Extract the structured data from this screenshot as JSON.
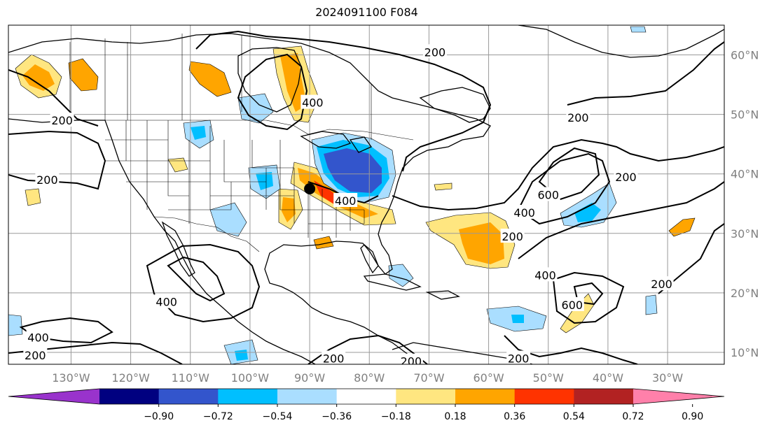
{
  "title": "2024091100 F084",
  "lon_labels": [
    "130°W",
    "120°W",
    "110°W",
    "100°W",
    "90°W",
    "80°W",
    "70°W",
    "60°W",
    "50°W",
    "40°W",
    "30°W"
  ],
  "lat_labels": [
    "60°N",
    "50°N",
    "40°N",
    "30°N",
    "20°N",
    "10°N"
  ],
  "colorbar": {
    "colors": [
      "#9933cc",
      "#000080",
      "#3355cc",
      "#00bfff",
      "#aadeff",
      "#ffffff",
      "#ffe680",
      "#ffa500",
      "#ff3300",
      "#b22222",
      "#ff80aa"
    ],
    "ticks": [
      "−0.90",
      "−0.72",
      "−0.54",
      "−0.36",
      "−0.18",
      "0.18",
      "0.36",
      "0.54",
      "0.72",
      "0.90"
    ]
  },
  "contour_labels": [
    {
      "text": "200",
      "lon": -69,
      "lat": 60.5
    },
    {
      "text": "400",
      "lon": -89.5,
      "lat": 52
    },
    {
      "text": "200",
      "lon": -131.5,
      "lat": 49
    },
    {
      "text": "200",
      "lon": -134,
      "lat": 39
    },
    {
      "text": "400",
      "lon": -84,
      "lat": 35.5
    },
    {
      "text": "200",
      "lon": -45,
      "lat": 49.5
    },
    {
      "text": "200",
      "lon": -37,
      "lat": 39.5
    },
    {
      "text": "600",
      "lon": -50,
      "lat": 36.5
    },
    {
      "text": "400",
      "lon": -54,
      "lat": 33.5
    },
    {
      "text": "200",
      "lon": -56,
      "lat": 29.5
    },
    {
      "text": "400",
      "lon": -50.5,
      "lat": 23
    },
    {
      "text": "600",
      "lon": -46,
      "lat": 18
    },
    {
      "text": "200",
      "lon": -31,
      "lat": 21.5
    },
    {
      "text": "400",
      "lon": -114,
      "lat": 18.5
    },
    {
      "text": "400",
      "lon": -135.5,
      "lat": 12.5
    },
    {
      "text": "200",
      "lon": -136,
      "lat": 9.5
    },
    {
      "text": "200",
      "lon": -86,
      "lat": 9
    },
    {
      "text": "200",
      "lon": -73,
      "lat": 8.5
    },
    {
      "text": "200",
      "lon": -55,
      "lat": 9
    }
  ],
  "storm_marker": {
    "lon": -90,
    "lat": 37.5
  }
}
